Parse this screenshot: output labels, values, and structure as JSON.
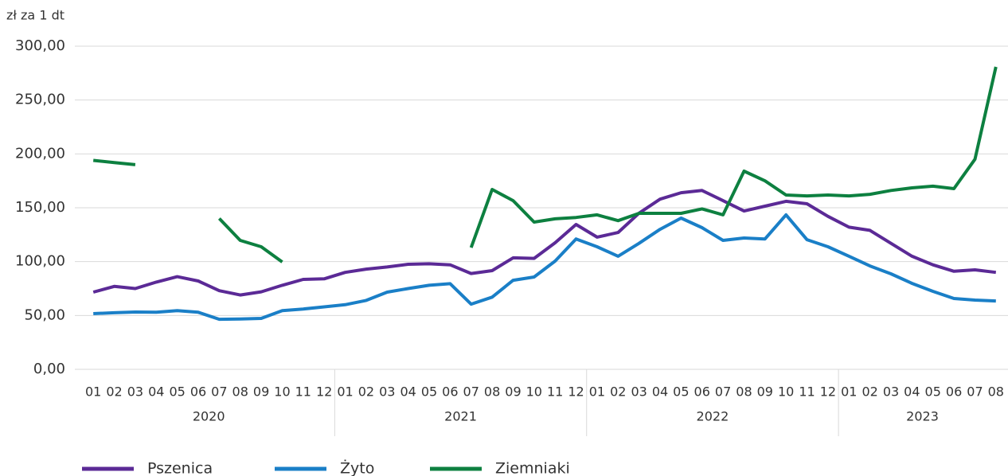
{
  "chart_data": {
    "type": "line",
    "y_axis_label": "zł za 1 dt",
    "categories": [
      "01",
      "02",
      "03",
      "04",
      "05",
      "06",
      "07",
      "08",
      "09",
      "10",
      "11",
      "12",
      "01",
      "02",
      "03",
      "04",
      "05",
      "06",
      "07",
      "08",
      "09",
      "10",
      "11",
      "12",
      "01",
      "02",
      "03",
      "04",
      "05",
      "06",
      "07",
      "08",
      "09",
      "10",
      "11",
      "12",
      "01",
      "02",
      "03",
      "04",
      "05",
      "06",
      "07",
      "08"
    ],
    "year_groups": [
      "2020",
      "2021",
      "2022",
      "2023"
    ],
    "series": [
      {
        "name": "Pszenica",
        "color": "#5b2a96",
        "values": [
          71.7,
          77,
          75,
          81,
          86,
          82,
          73,
          69,
          72,
          78,
          83.5,
          84,
          90,
          93,
          95,
          97.5,
          98,
          97,
          89,
          91.6,
          103.5,
          103,
          117.5,
          134.5,
          122.7,
          127,
          145,
          158,
          164,
          166,
          156.6,
          147,
          151.5,
          156,
          153.7,
          142,
          132,
          129,
          117,
          105,
          97,
          91,
          92.4,
          90
        ]
      },
      {
        "name": "Żyto",
        "color": "#1a7fc7",
        "values": [
          51.7,
          52.5,
          53.2,
          53,
          54.5,
          53,
          46.5,
          46.8,
          47.3,
          54.5,
          56,
          58,
          60,
          64,
          71.7,
          75,
          78,
          79.5,
          60.5,
          67,
          82.7,
          85.7,
          100.5,
          121,
          113.8,
          105,
          117,
          130,
          140.4,
          131.5,
          119.7,
          121.9,
          121,
          143.4,
          120.4,
          113.8,
          105,
          96,
          88.7,
          79.8,
          72.4,
          65.8,
          64.3,
          63.5
        ]
      },
      {
        "name": "Ziemniaki",
        "color": "#0d8040",
        "values": [
          194,
          192,
          190,
          null,
          null,
          null,
          140,
          119.7,
          113.8,
          99.7,
          null,
          null,
          null,
          null,
          null,
          null,
          null,
          null,
          113,
          167,
          156.6,
          136.7,
          139.7,
          141,
          143.4,
          138,
          144.8,
          144.8,
          144.8,
          149,
          143.4,
          184,
          175,
          161.8,
          161,
          161.8,
          161,
          162.5,
          166,
          168.5,
          170,
          167.7,
          195,
          280.8
        ]
      }
    ],
    "ylim": [
      0,
      300
    ],
    "yticks": [
      {
        "value": 0,
        "label": "0,00"
      },
      {
        "value": 50,
        "label": "50,00"
      },
      {
        "value": 100,
        "label": "100,00"
      },
      {
        "value": 150,
        "label": "150,00"
      },
      {
        "value": 200,
        "label": "200,00"
      },
      {
        "value": 250,
        "label": "250,00"
      },
      {
        "value": 300,
        "label": "300,00"
      }
    ],
    "grid": true,
    "legend": "bottom-left"
  }
}
